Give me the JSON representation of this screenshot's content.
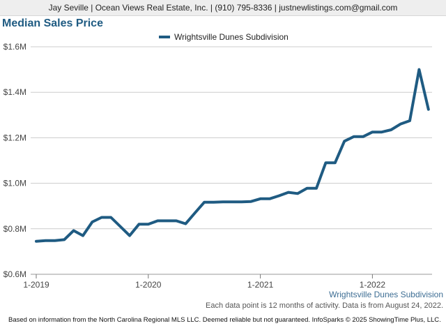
{
  "header": {
    "contact": "Jay Seville | Ocean Views Real Estate, Inc. | (910) 795-8336 | justnewlistings.com@gmail.com"
  },
  "colors": {
    "series": "#1f5b82",
    "title": "#1f5b82",
    "grid": "#cccccc"
  },
  "chart_data": {
    "type": "line",
    "title": "Median Sales Price",
    "xlabel": "",
    "ylabel": "",
    "yticks": [
      "$0.6M",
      "$0.8M",
      "$1.0M",
      "$1.2M",
      "$1.4M",
      "$1.6M"
    ],
    "ylim": [
      0.6,
      1.6
    ],
    "xticks": [
      "1-2019",
      "1-2020",
      "1-2021",
      "1-2022"
    ],
    "x": [
      "1-2019",
      "2-2019",
      "3-2019",
      "4-2019",
      "5-2019",
      "6-2019",
      "7-2019",
      "8-2019",
      "9-2019",
      "10-2019",
      "11-2019",
      "12-2019",
      "1-2020",
      "2-2020",
      "3-2020",
      "4-2020",
      "5-2020",
      "6-2020",
      "7-2020",
      "8-2020",
      "9-2020",
      "10-2020",
      "11-2020",
      "12-2020",
      "1-2021",
      "2-2021",
      "3-2021",
      "4-2021",
      "5-2021",
      "6-2021",
      "7-2021",
      "8-2021",
      "9-2021",
      "10-2021",
      "11-2021",
      "12-2021",
      "1-2022",
      "2-2022",
      "3-2022",
      "4-2022",
      "5-2022",
      "6-2022",
      "7-2022"
    ],
    "grid": true,
    "legend_position": "top",
    "series": [
      {
        "name": "Wrightsville Dunes Subdivision",
        "values": [
          0.745,
          0.748,
          0.748,
          0.752,
          0.792,
          0.77,
          0.83,
          0.85,
          0.85,
          0.81,
          0.77,
          0.82,
          0.82,
          0.835,
          0.835,
          0.835,
          0.822,
          0.87,
          0.917,
          0.917,
          0.918,
          0.918,
          0.918,
          0.92,
          0.932,
          0.932,
          0.945,
          0.96,
          0.955,
          0.978,
          0.978,
          1.09,
          1.09,
          1.185,
          1.205,
          1.205,
          1.225,
          1.225,
          1.235,
          1.26,
          1.275,
          1.5,
          1.325
        ]
      }
    ]
  },
  "notes": {
    "series_label": "Wrightsville Dunes Subdivision",
    "activity_note": "Each data point is 12 months of activity. Data is from August 24, 2022.",
    "source": "Based on information from the North Carolina Regional MLS LLC. Deemed reliable but not guaranteed. InfoSparks © 2025 ShowingTime Plus, LLC."
  }
}
